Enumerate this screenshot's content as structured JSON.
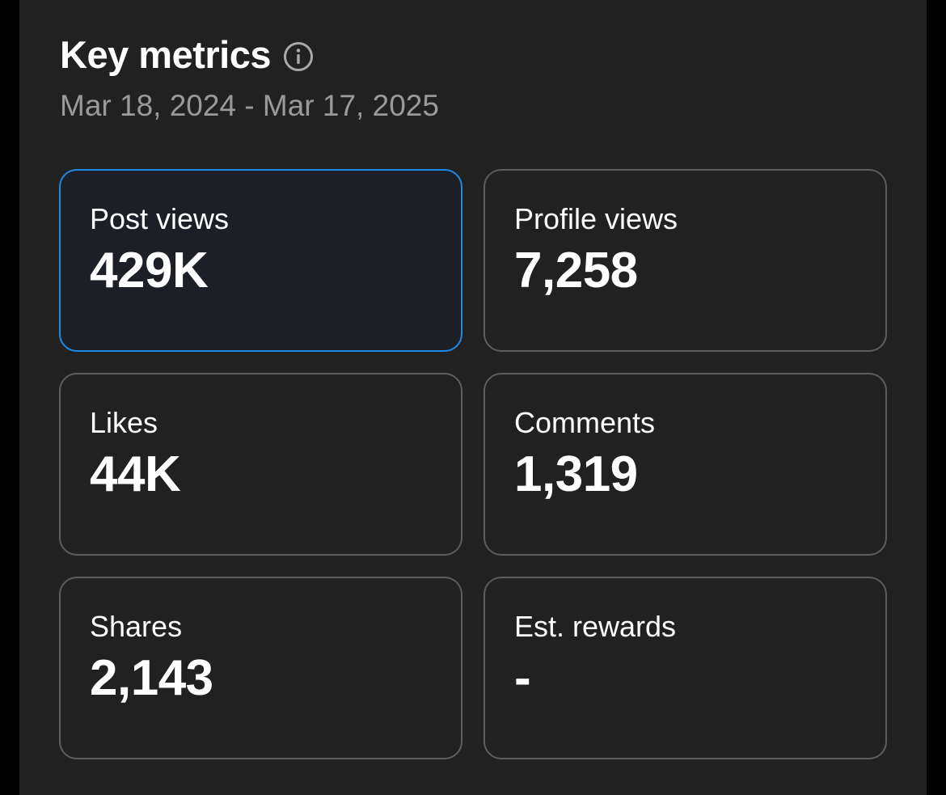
{
  "header": {
    "title": "Key metrics",
    "info_icon": "info-circle-icon",
    "date_range": "Mar 18, 2024 - Mar 17, 2025"
  },
  "metrics": [
    {
      "label": "Post views",
      "value": "429K",
      "selected": true
    },
    {
      "label": "Profile views",
      "value": "7,258",
      "selected": false
    },
    {
      "label": "Likes",
      "value": "44K",
      "selected": false
    },
    {
      "label": "Comments",
      "value": "1,319",
      "selected": false
    },
    {
      "label": "Shares",
      "value": "2,143",
      "selected": false
    },
    {
      "label": "Est. rewards",
      "value": "-",
      "selected": false
    }
  ],
  "colors": {
    "background": "#000000",
    "panel": "#212121",
    "card_border": "#5d5d5d",
    "selected_border": "#1f8ae6",
    "selected_fill": "#1c2026",
    "text_primary": "#ffffff",
    "text_secondary": "#9a9a9a"
  }
}
